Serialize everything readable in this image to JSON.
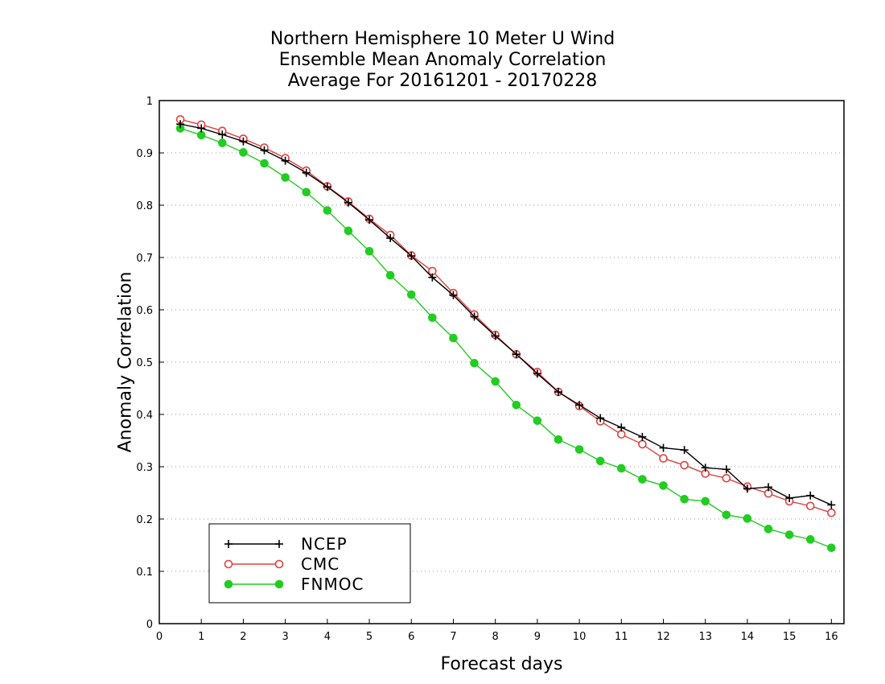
{
  "chart_data": {
    "type": "line",
    "title_lines": [
      "Northern Hemisphere 10 Meter U Wind",
      "Ensemble Mean Anomaly Correlation",
      "Average For 20161201 - 20170228"
    ],
    "xlabel": "Forecast days",
    "ylabel": "Anomaly Correlation",
    "xlim": [
      0,
      16.3
    ],
    "ylim": [
      0,
      1
    ],
    "x_ticks": [
      0,
      1,
      2,
      3,
      4,
      5,
      6,
      7,
      8,
      9,
      10,
      11,
      12,
      13,
      14,
      15,
      16
    ],
    "y_ticks": [
      0,
      0.1,
      0.2,
      0.3,
      0.4,
      0.5,
      0.6,
      0.7,
      0.8,
      0.9,
      1
    ],
    "y_tick_labels": [
      "0",
      "0.1",
      "0.2",
      "0.3",
      "0.4",
      "0.5",
      "0.6",
      "0.7",
      "0.8",
      "0.9",
      "1"
    ],
    "grid": "horizontal dotted",
    "legend_position": "bottom-left",
    "x": [
      0.5,
      1,
      1.5,
      2,
      2.5,
      3,
      3.5,
      4,
      4.5,
      5,
      5.5,
      6,
      6.5,
      7,
      7.5,
      8,
      8.5,
      9,
      9.5,
      10,
      10.5,
      11,
      11.5,
      12,
      12.5,
      13,
      13.5,
      14,
      14.5,
      15,
      15.5,
      16
    ],
    "series": [
      {
        "name": "NCEP",
        "color": "#000000",
        "marker": "plus",
        "values": [
          0.955,
          0.947,
          0.935,
          0.922,
          0.905,
          0.885,
          0.862,
          0.835,
          0.805,
          0.772,
          0.737,
          0.703,
          0.662,
          0.628,
          0.587,
          0.55,
          0.515,
          0.478,
          0.443,
          0.418,
          0.393,
          0.375,
          0.357,
          0.336,
          0.332,
          0.298,
          0.295,
          0.258,
          0.261,
          0.24,
          0.245,
          0.227
        ]
      },
      {
        "name": "CMC",
        "color": "#e04040",
        "marker": "open-circle",
        "values": [
          0.964,
          0.954,
          0.942,
          0.927,
          0.91,
          0.89,
          0.866,
          0.836,
          0.807,
          0.774,
          0.743,
          0.704,
          0.674,
          0.632,
          0.591,
          0.552,
          0.515,
          0.481,
          0.443,
          0.416,
          0.387,
          0.362,
          0.343,
          0.316,
          0.303,
          0.287,
          0.278,
          0.262,
          0.249,
          0.234,
          0.225,
          0.212
        ]
      },
      {
        "name": "FNMOC",
        "color": "#22cc22",
        "marker": "filled-circle",
        "values": [
          0.947,
          0.934,
          0.919,
          0.901,
          0.88,
          0.853,
          0.825,
          0.79,
          0.751,
          0.712,
          0.666,
          0.629,
          0.585,
          0.546,
          0.498,
          0.463,
          0.418,
          0.388,
          0.352,
          0.333,
          0.311,
          0.297,
          0.276,
          0.264,
          0.238,
          0.234,
          0.208,
          0.201,
          0.181,
          0.17,
          0.161,
          0.145
        ]
      }
    ]
  }
}
